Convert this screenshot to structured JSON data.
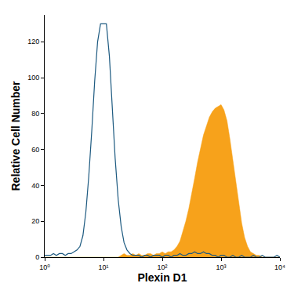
{
  "chart_data": {
    "type": "line",
    "x_label": "Plexin D1",
    "y_label": "Relative Cell Number",
    "log": "x",
    "grid": false,
    "xlim": [
      1,
      10000
    ],
    "xticks": [
      {
        "value": 1,
        "label": "10⁰"
      },
      {
        "value": 10,
        "label": "10¹"
      },
      {
        "value": 100,
        "label": "10²"
      },
      {
        "value": 1000,
        "label": "10³"
      },
      {
        "value": 10000,
        "label": "10⁴"
      }
    ],
    "ylim": [
      0,
      135
    ],
    "yticks": [
      0,
      20,
      40,
      60,
      80,
      100,
      120
    ],
    "x": [
      1,
      1.12,
      1.26,
      1.41,
      1.58,
      1.78,
      2,
      2.24,
      2.51,
      2.82,
      3.16,
      3.55,
      3.98,
      4.47,
      5.01,
      5.62,
      6.31,
      7.08,
      7.94,
      8.91,
      10,
      11.2,
      12.6,
      14.1,
      15.8,
      17.8,
      20,
      22.4,
      25.1,
      28.2,
      31.6,
      35.5,
      39.8,
      44.7,
      50.1,
      56.2,
      63.1,
      70.8,
      79.4,
      89.1,
      100,
      112,
      126,
      141,
      158,
      178,
      200,
      224,
      251,
      282,
      316,
      355,
      398,
      447,
      501,
      562,
      631,
      708,
      794,
      891,
      1000,
      1120,
      1260,
      1410,
      1580,
      1780,
      2000,
      2240,
      2510,
      2820,
      3160,
      3550,
      3980,
      4470,
      5010,
      5620,
      6310,
      7080,
      7940,
      8910,
      10000
    ],
    "series": [
      {
        "type": "line",
        "color": "#1d5a80",
        "values": [
          1,
          1,
          1,
          2,
          1,
          2,
          2,
          1,
          2,
          2,
          3,
          4,
          6,
          12,
          25,
          45,
          70,
          98,
          120,
          130,
          130,
          130,
          112,
          82,
          55,
          32,
          17,
          8,
          4,
          2,
          1,
          1,
          1,
          0,
          1,
          1,
          0,
          1,
          1,
          1,
          0,
          1,
          1,
          0,
          1,
          1,
          2,
          1,
          1,
          2,
          2,
          3,
          2,
          2,
          3,
          2,
          2,
          1,
          1,
          0,
          1,
          1,
          0,
          0,
          1,
          0,
          0,
          1,
          0,
          0,
          0,
          1,
          0,
          0,
          1,
          0,
          0,
          0,
          0,
          1,
          0
        ]
      },
      {
        "type": "area",
        "color": "#f7a21b",
        "values": [
          0,
          0,
          0,
          0,
          0,
          0,
          0,
          0,
          0,
          0,
          0,
          0,
          0,
          0,
          0,
          0,
          0,
          0,
          0,
          0,
          0,
          0,
          0,
          0,
          0,
          0,
          1,
          2,
          1,
          1,
          2,
          1,
          2,
          1,
          1,
          2,
          2,
          1,
          2,
          2,
          3,
          2,
          3,
          3,
          4,
          6,
          9,
          14,
          20,
          27,
          35,
          44,
          53,
          61,
          68,
          73,
          78,
          81,
          83,
          84,
          85,
          82,
          76,
          66,
          54,
          41,
          29,
          19,
          11,
          6,
          3,
          2,
          1,
          1,
          0,
          0,
          0,
          0,
          0,
          0,
          0
        ]
      }
    ]
  }
}
